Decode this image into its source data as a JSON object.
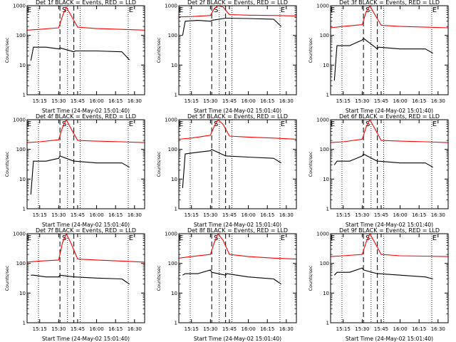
{
  "layout": {
    "rows": 3,
    "cols": 3
  },
  "colors": {
    "events": "#000000",
    "lld": "#ff0000",
    "axis": "#000000"
  },
  "shared": {
    "ylabel": "Counts/sec",
    "xlabel": "Start Time (24-May-02 15:01:40)",
    "xticks": [
      "15:15",
      "15:30",
      "15:45",
      "16:00",
      "16:15",
      "16:30"
    ],
    "yticks": [
      "1",
      "10",
      "100",
      "1000"
    ],
    "markers": [
      "E",
      "S",
      "E"
    ]
  },
  "chart_data": [
    {
      "type": "line",
      "title": "Det 1f BLACK = Events, RED = LLD",
      "ylim": [
        1,
        1000
      ],
      "yscale": "log",
      "xlim": [
        "15:05",
        "16:38"
      ],
      "vlines_dotted": [
        "15:14",
        "15:37",
        "15:47",
        "16:25"
      ],
      "vlines_dashed": [
        "15:31",
        "15:42"
      ],
      "series": [
        {
          "name": "Events",
          "color": "#000000",
          "x": [
            "15:08",
            "15:10",
            "15:20",
            "15:30",
            "15:31",
            "15:42",
            "15:43",
            "16:00",
            "16:20",
            "16:26"
          ],
          "y": [
            14,
            40,
            40,
            35,
            38,
            28,
            30,
            30,
            28,
            15
          ]
        },
        {
          "name": "LLD",
          "color": "#ff0000",
          "x": [
            "15:05",
            "15:15",
            "15:30",
            "15:33",
            "15:36",
            "15:40",
            "15:45",
            "16:00",
            "16:20",
            "16:38"
          ],
          "y": [
            150,
            160,
            180,
            450,
            900,
            450,
            190,
            170,
            160,
            150
          ]
        }
      ]
    },
    {
      "type": "line",
      "title": "Det 2f BLACK = Events, RED = LLD",
      "ylim": [
        1,
        1000
      ],
      "yscale": "log",
      "xlim": [
        "15:05",
        "16:38"
      ],
      "vlines_dotted": [
        "15:14",
        "15:37",
        "15:47",
        "16:25"
      ],
      "vlines_dashed": [
        "15:31",
        "15:42"
      ],
      "series": [
        {
          "name": "Events",
          "color": "#000000",
          "x": [
            "15:08",
            "15:10",
            "15:20",
            "15:30",
            "15:31",
            "15:42",
            "15:43",
            "16:00",
            "16:20",
            "16:26"
          ],
          "y": [
            100,
            300,
            320,
            300,
            320,
            380,
            380,
            370,
            350,
            200
          ]
        },
        {
          "name": "LLD",
          "color": "#ff0000",
          "x": [
            "15:05",
            "15:15",
            "15:30",
            "15:33",
            "15:36",
            "15:40",
            "15:45",
            "16:00",
            "16:20",
            "16:38"
          ],
          "y": [
            420,
            430,
            470,
            800,
            1000,
            900,
            500,
            480,
            470,
            450
          ]
        }
      ]
    },
    {
      "type": "line",
      "title": "Det 3f BLACK = Events, RED = LLD",
      "ylim": [
        1,
        1000
      ],
      "yscale": "log",
      "xlim": [
        "15:05",
        "16:38"
      ],
      "vlines_dotted": [
        "15:14",
        "15:37",
        "15:47",
        "16:25"
      ],
      "vlines_dashed": [
        "15:31",
        "15:42"
      ],
      "series": [
        {
          "name": "Events",
          "color": "#000000",
          "x": [
            "15:08",
            "15:10",
            "15:20",
            "15:30",
            "15:31",
            "15:42",
            "15:43",
            "16:00",
            "16:20",
            "16:26"
          ],
          "y": [
            3,
            45,
            45,
            70,
            80,
            35,
            40,
            35,
            35,
            25
          ]
        },
        {
          "name": "LLD",
          "color": "#ff0000",
          "x": [
            "15:05",
            "15:15",
            "15:30",
            "15:33",
            "15:36",
            "15:40",
            "15:45",
            "16:00",
            "16:20",
            "16:38"
          ],
          "y": [
            180,
            200,
            230,
            600,
            1000,
            500,
            220,
            200,
            190,
            180
          ]
        }
      ]
    },
    {
      "type": "line",
      "title": "Det 4f BLACK = Events, RED = LLD",
      "ylim": [
        1,
        1000
      ],
      "yscale": "log",
      "xlim": [
        "15:05",
        "16:38"
      ],
      "vlines_dotted": [
        "15:14",
        "15:37",
        "15:47",
        "16:25"
      ],
      "vlines_dashed": [
        "15:31",
        "15:42"
      ],
      "series": [
        {
          "name": "Events",
          "color": "#000000",
          "x": [
            "15:08",
            "15:10",
            "15:20",
            "15:30",
            "15:31",
            "15:42",
            "15:43",
            "16:00",
            "16:20",
            "16:26"
          ],
          "y": [
            3,
            40,
            40,
            50,
            60,
            40,
            40,
            35,
            35,
            25
          ]
        },
        {
          "name": "LLD",
          "color": "#ff0000",
          "x": [
            "15:05",
            "15:15",
            "15:30",
            "15:33",
            "15:36",
            "15:40",
            "15:45",
            "16:00",
            "16:20",
            "16:38"
          ],
          "y": [
            170,
            180,
            210,
            550,
            1000,
            480,
            200,
            190,
            180,
            170
          ]
        }
      ]
    },
    {
      "type": "line",
      "title": "Det 5f BLACK = Events, RED = LLD",
      "ylim": [
        1,
        1000
      ],
      "yscale": "log",
      "xlim": [
        "15:05",
        "16:38"
      ],
      "vlines_dotted": [
        "15:14",
        "15:37",
        "15:47",
        "16:25"
      ],
      "vlines_dashed": [
        "15:31",
        "15:42"
      ],
      "series": [
        {
          "name": "Events",
          "color": "#000000",
          "x": [
            "15:08",
            "15:10",
            "15:20",
            "15:30",
            "15:31",
            "15:42",
            "15:43",
            "16:00",
            "16:20",
            "16:26"
          ],
          "y": [
            5,
            70,
            80,
            90,
            100,
            60,
            60,
            55,
            50,
            35
          ]
        },
        {
          "name": "LLD",
          "color": "#ff0000",
          "x": [
            "15:05",
            "15:15",
            "15:30",
            "15:33",
            "15:36",
            "15:40",
            "15:45",
            "16:00",
            "16:20",
            "16:38"
          ],
          "y": [
            220,
            240,
            300,
            600,
            1000,
            700,
            280,
            260,
            240,
            220
          ]
        }
      ]
    },
    {
      "type": "line",
      "title": "Det 6f BLACK = Events, RED = LLD",
      "ylim": [
        1,
        1000
      ],
      "yscale": "log",
      "xlim": [
        "15:05",
        "16:38"
      ],
      "vlines_dotted": [
        "15:14",
        "15:37",
        "15:47",
        "16:25"
      ],
      "vlines_dashed": [
        "15:31",
        "15:42"
      ],
      "series": [
        {
          "name": "Events",
          "color": "#000000",
          "x": [
            "15:08",
            "15:10",
            "15:20",
            "15:30",
            "15:31",
            "15:42",
            "15:43",
            "16:00",
            "16:20",
            "16:26"
          ],
          "y": [
            30,
            40,
            40,
            60,
            70,
            40,
            40,
            35,
            35,
            25
          ]
        },
        {
          "name": "LLD",
          "color": "#ff0000",
          "x": [
            "15:05",
            "15:15",
            "15:30",
            "15:33",
            "15:36",
            "15:40",
            "15:45",
            "16:00",
            "16:20",
            "16:38"
          ],
          "y": [
            170,
            180,
            220,
            550,
            1000,
            500,
            200,
            190,
            180,
            170
          ]
        }
      ]
    },
    {
      "type": "line",
      "title": "Det 7f BLACK = Events, RED = LLD",
      "ylim": [
        1,
        1000
      ],
      "yscale": "log",
      "xlim": [
        "15:05",
        "16:38"
      ],
      "vlines_dotted": [
        "15:14",
        "15:37",
        "15:47",
        "16:25"
      ],
      "vlines_dashed": [
        "15:31",
        "15:42"
      ],
      "series": [
        {
          "name": "Events",
          "color": "#000000",
          "x": [
            "15:08",
            "15:10",
            "15:20",
            "15:30",
            "15:31",
            "15:42",
            "15:43",
            "16:00",
            "16:20",
            "16:26"
          ],
          "y": [
            40,
            40,
            35,
            35,
            40,
            35,
            35,
            32,
            30,
            20
          ]
        },
        {
          "name": "LLD",
          "color": "#ff0000",
          "x": [
            "15:05",
            "15:15",
            "15:30",
            "15:33",
            "15:36",
            "15:40",
            "15:45",
            "16:00",
            "16:20",
            "16:38"
          ],
          "y": [
            110,
            120,
            130,
            500,
            1000,
            450,
            140,
            130,
            120,
            110
          ]
        }
      ]
    },
    {
      "type": "line",
      "title": "Det 8f BLACK = Events, RED = LLD",
      "ylim": [
        1,
        1000
      ],
      "yscale": "log",
      "xlim": [
        "15:05",
        "16:38"
      ],
      "vlines_dotted": [
        "15:14",
        "15:37",
        "15:47",
        "16:25"
      ],
      "vlines_dashed": [
        "15:31",
        "15:42"
      ],
      "series": [
        {
          "name": "Events",
          "color": "#000000",
          "x": [
            "15:08",
            "15:10",
            "15:20",
            "15:30",
            "15:31",
            "15:42",
            "15:43",
            "16:00",
            "16:20",
            "16:26"
          ],
          "y": [
            40,
            45,
            45,
            60,
            50,
            40,
            45,
            35,
            30,
            20
          ]
        },
        {
          "name": "LLD",
          "color": "#ff0000",
          "x": [
            "15:05",
            "15:15",
            "15:30",
            "15:33",
            "15:36",
            "15:40",
            "15:45",
            "16:00",
            "16:20",
            "16:38"
          ],
          "y": [
            150,
            170,
            200,
            500,
            1000,
            600,
            200,
            170,
            150,
            140
          ]
        }
      ]
    },
    {
      "type": "line",
      "title": "Det 9f BLACK = Events, RED = LLD",
      "ylim": [
        1,
        1000
      ],
      "yscale": "log",
      "xlim": [
        "15:05",
        "16:38"
      ],
      "vlines_dotted": [
        "15:14",
        "15:37",
        "15:47",
        "16:25"
      ],
      "vlines_dashed": [
        "15:31",
        "15:42"
      ],
      "series": [
        {
          "name": "Events",
          "color": "#000000",
          "x": [
            "15:08",
            "15:10",
            "15:20",
            "15:30",
            "15:31",
            "15:42",
            "15:43",
            "16:00",
            "16:20",
            "16:26"
          ],
          "y": [
            40,
            50,
            50,
            70,
            60,
            45,
            45,
            40,
            35,
            30
          ]
        },
        {
          "name": "LLD",
          "color": "#ff0000",
          "x": [
            "15:05",
            "15:15",
            "15:30",
            "15:33",
            "15:36",
            "15:40",
            "15:45",
            "16:00",
            "16:20",
            "16:38"
          ],
          "y": [
            170,
            180,
            200,
            500,
            1000,
            500,
            200,
            180,
            175,
            170
          ]
        }
      ]
    }
  ]
}
